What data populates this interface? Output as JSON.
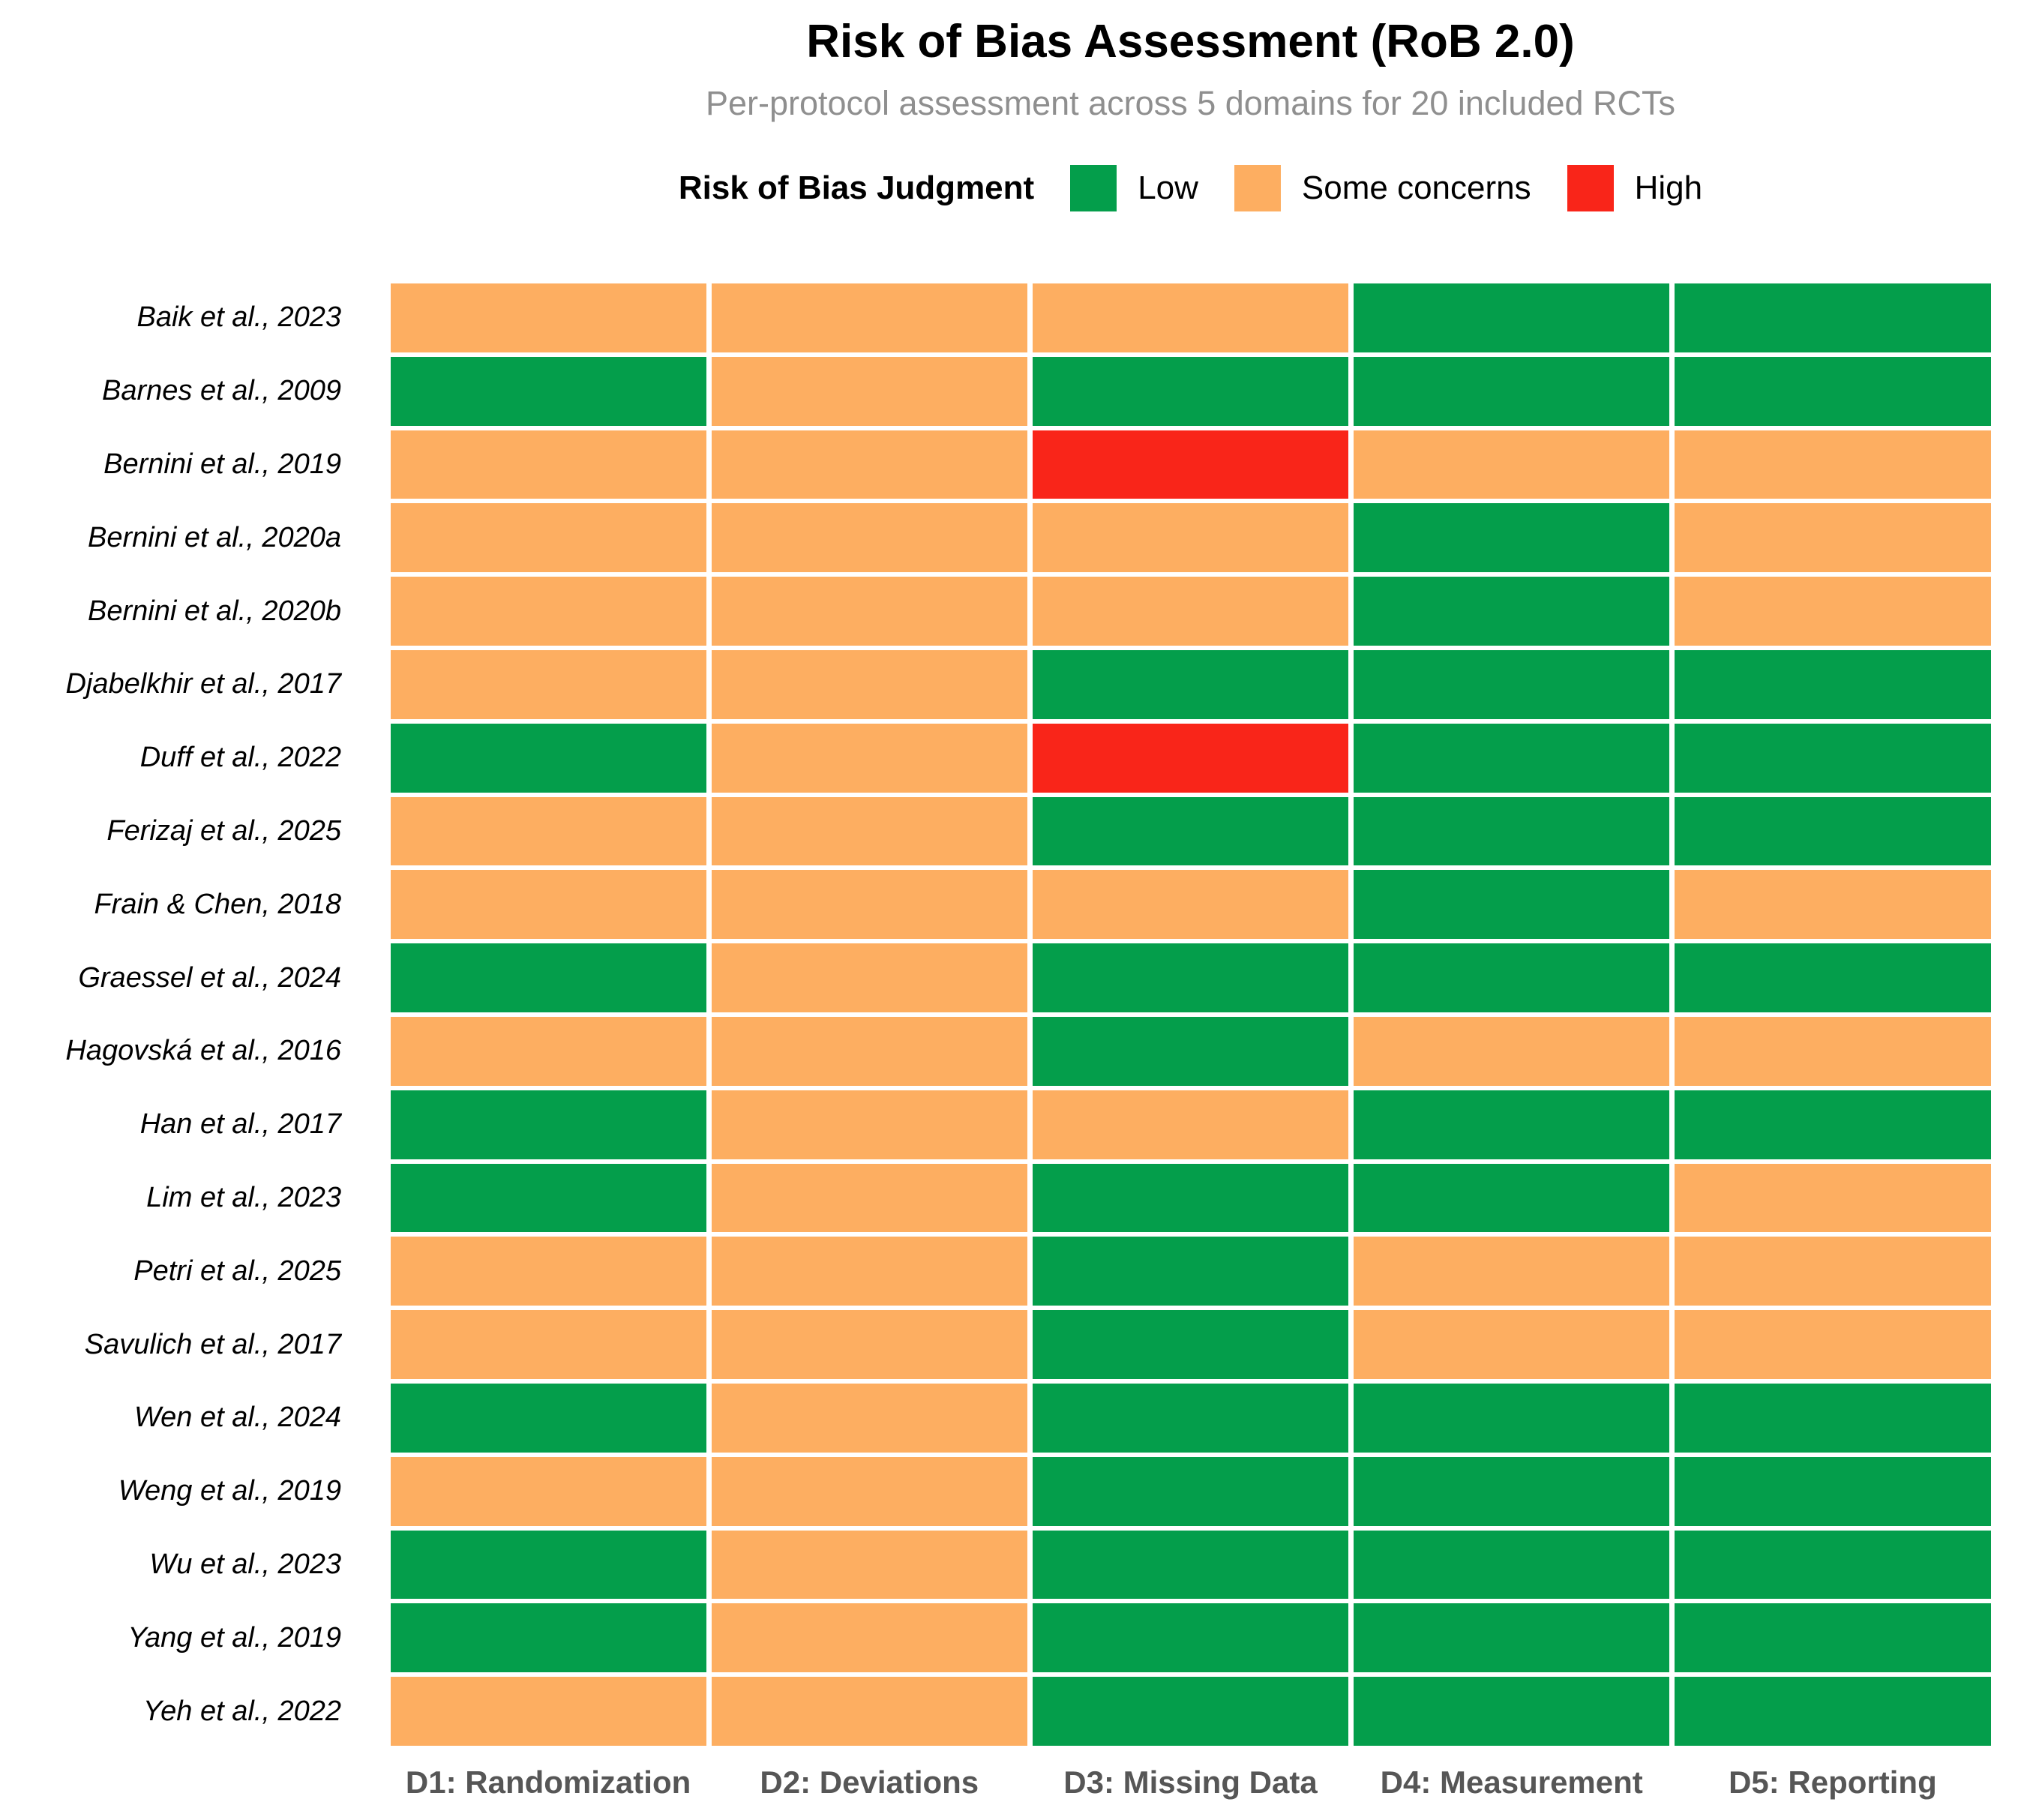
{
  "chart_data": {
    "type": "heatmap",
    "title": "Risk of Bias Assessment (RoB 2.0)",
    "subtitle": "Per-protocol assessment across 5 domains for 20 included RCTs",
    "legend_title": "Risk of Bias Judgment",
    "legend_position": "top-center",
    "grid_style": "white gaps between rectangular tiles, no outer axis lines",
    "levels": [
      {
        "label": "Low",
        "color": "#049E4B"
      },
      {
        "label": "Some concerns",
        "color": "#FDAE61"
      },
      {
        "label": "High",
        "color": "#F92519"
      }
    ],
    "columns": [
      "D1: Randomization",
      "D2: Deviations",
      "D3: Missing Data",
      "D4: Measurement",
      "D5: Reporting"
    ],
    "n_rows": 20,
    "n_columns": 5,
    "rows": [
      {
        "study": "Baik et al., 2023",
        "values": [
          "Some concerns",
          "Some concerns",
          "Some concerns",
          "Low",
          "Low"
        ]
      },
      {
        "study": "Barnes et al., 2009",
        "values": [
          "Low",
          "Some concerns",
          "Low",
          "Low",
          "Low"
        ]
      },
      {
        "study": "Bernini et al., 2019",
        "values": [
          "Some concerns",
          "Some concerns",
          "High",
          "Some concerns",
          "Some concerns"
        ]
      },
      {
        "study": "Bernini et al., 2020a",
        "values": [
          "Some concerns",
          "Some concerns",
          "Some concerns",
          "Low",
          "Some concerns"
        ]
      },
      {
        "study": "Bernini et al., 2020b",
        "values": [
          "Some concerns",
          "Some concerns",
          "Some concerns",
          "Low",
          "Some concerns"
        ]
      },
      {
        "study": "Djabelkhir et al., 2017",
        "values": [
          "Some concerns",
          "Some concerns",
          "Low",
          "Low",
          "Low"
        ]
      },
      {
        "study": "Duff et al., 2022",
        "values": [
          "Low",
          "Some concerns",
          "High",
          "Low",
          "Low"
        ]
      },
      {
        "study": "Ferizaj et al., 2025",
        "values": [
          "Some concerns",
          "Some concerns",
          "Low",
          "Low",
          "Low"
        ]
      },
      {
        "study": "Frain & Chen, 2018",
        "values": [
          "Some concerns",
          "Some concerns",
          "Some concerns",
          "Low",
          "Some concerns"
        ]
      },
      {
        "study": "Graessel et al., 2024",
        "values": [
          "Low",
          "Some concerns",
          "Low",
          "Low",
          "Low"
        ]
      },
      {
        "study": "Hagovská et al., 2016",
        "values": [
          "Some concerns",
          "Some concerns",
          "Low",
          "Some concerns",
          "Some concerns"
        ]
      },
      {
        "study": "Han et al., 2017",
        "values": [
          "Low",
          "Some concerns",
          "Some concerns",
          "Low",
          "Low"
        ]
      },
      {
        "study": "Lim et al., 2023",
        "values": [
          "Low",
          "Some concerns",
          "Low",
          "Low",
          "Some concerns"
        ]
      },
      {
        "study": "Petri et al., 2025",
        "values": [
          "Some concerns",
          "Some concerns",
          "Low",
          "Some concerns",
          "Some concerns"
        ]
      },
      {
        "study": "Savulich et al., 2017",
        "values": [
          "Some concerns",
          "Some concerns",
          "Low",
          "Some concerns",
          "Some concerns"
        ]
      },
      {
        "study": "Wen et al., 2024",
        "values": [
          "Low",
          "Some concerns",
          "Low",
          "Low",
          "Low"
        ]
      },
      {
        "study": "Weng et al., 2019",
        "values": [
          "Some concerns",
          "Some concerns",
          "Low",
          "Low",
          "Low"
        ]
      },
      {
        "study": "Wu et al., 2023",
        "values": [
          "Low",
          "Some concerns",
          "Low",
          "Low",
          "Low"
        ]
      },
      {
        "study": "Yang et al., 2019",
        "values": [
          "Low",
          "Some concerns",
          "Low",
          "Low",
          "Low"
        ]
      },
      {
        "study": "Yeh et al., 2022",
        "values": [
          "Some concerns",
          "Some concerns",
          "Low",
          "Low",
          "Low"
        ]
      }
    ]
  },
  "colors": {
    "background": "#FFFFFF",
    "title_text": "#000000",
    "subtitle_text": "#8F8F8F",
    "study_label_text": "#000000",
    "domain_label_text": "#565656"
  }
}
